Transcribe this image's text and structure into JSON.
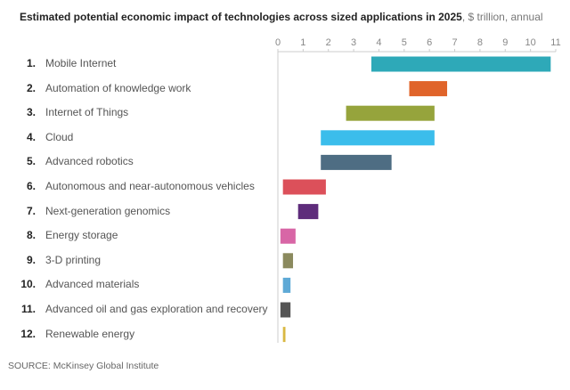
{
  "title": {
    "bold": "Estimated potential economic impact of technologies across sized applications in 2025",
    "sub": ", $ trillion, annual"
  },
  "source": "SOURCE: McKinsey Global Institute",
  "chart_data": {
    "type": "bar",
    "orientation": "horizontal-range",
    "title": "Estimated potential economic impact of technologies across sized applications in 2025, $ trillion, annual",
    "xlabel": "$ trillion, annual",
    "xlim": [
      0,
      11
    ],
    "xticks": [
      "0",
      "1",
      "2",
      "3",
      "4",
      "5",
      "6",
      "7",
      "8",
      "9",
      "10",
      "11"
    ],
    "grid": false,
    "categories": [
      {
        "rank": "1.",
        "name": "Mobile Internet",
        "low": 3.7,
        "high": 10.8,
        "color": "#2ea9b8"
      },
      {
        "rank": "2.",
        "name": "Automation of knowledge work",
        "low": 5.2,
        "high": 6.7,
        "color": "#e0642a"
      },
      {
        "rank": "3.",
        "name": "Internet of Things",
        "low": 2.7,
        "high": 6.2,
        "color": "#96a43c"
      },
      {
        "rank": "4.",
        "name": "Cloud",
        "low": 1.7,
        "high": 6.2,
        "color": "#3bbdeb"
      },
      {
        "rank": "5.",
        "name": "Advanced robotics",
        "low": 1.7,
        "high": 4.5,
        "color": "#4e6d83"
      },
      {
        "rank": "6.",
        "name": "Autonomous and near-autonomous vehicles",
        "low": 0.2,
        "high": 1.9,
        "color": "#dc505a"
      },
      {
        "rank": "7.",
        "name": "Next-generation genomics",
        "low": 0.8,
        "high": 1.6,
        "color": "#5e2c7b"
      },
      {
        "rank": "8.",
        "name": "Energy storage",
        "low": 0.1,
        "high": 0.7,
        "color": "#d866a6"
      },
      {
        "rank": "9.",
        "name": "3-D printing",
        "low": 0.2,
        "high": 0.6,
        "color": "#8b8a5e"
      },
      {
        "rank": "10.",
        "name": "Advanced materials",
        "low": 0.2,
        "high": 0.5,
        "color": "#5ea9d6"
      },
      {
        "rank": "11.",
        "name": "Advanced oil and gas exploration and recovery",
        "low": 0.1,
        "high": 0.5,
        "color": "#555555"
      },
      {
        "rank": "12.",
        "name": "Renewable energy",
        "low": 0.2,
        "high": 0.3,
        "color": "#d9b842"
      }
    ]
  }
}
